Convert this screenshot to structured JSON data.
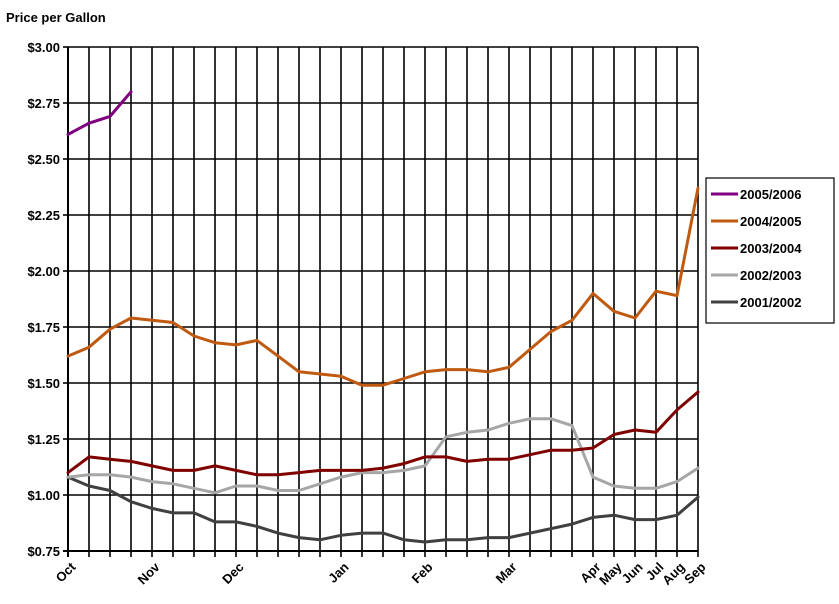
{
  "chart_data": {
    "type": "line",
    "ylabel": "Price per Gallon",
    "ylim": [
      0.75,
      3.0
    ],
    "yticks": [
      "$0.75",
      "$1.00",
      "$1.25",
      "$1.50",
      "$1.75",
      "$2.00",
      "$2.25",
      "$2.50",
      "$2.75",
      "$3.00"
    ],
    "ytick_values": [
      0.75,
      1.0,
      1.25,
      1.5,
      1.75,
      2.0,
      2.25,
      2.5,
      2.75,
      3.0
    ],
    "x_count": 31,
    "xtick_labels": [
      {
        "label": "Oct",
        "x": 0
      },
      {
        "label": "Nov",
        "x": 4
      },
      {
        "label": "Dec",
        "x": 8
      },
      {
        "label": "Jan",
        "x": 13
      },
      {
        "label": "Feb",
        "x": 17
      },
      {
        "label": "Mar",
        "x": 21
      },
      {
        "label": "Apr",
        "x": 25
      },
      {
        "label": "May",
        "x": 26
      },
      {
        "label": "Jun",
        "x": 27
      },
      {
        "label": "Jul",
        "x": 28
      },
      {
        "label": "Aug",
        "x": 29
      },
      {
        "label": "Sep",
        "x": 30
      }
    ],
    "grid": true,
    "legend_position": "right",
    "series": [
      {
        "name": "2005/2006",
        "color": "#800080",
        "values": [
          2.61,
          2.66,
          2.69,
          2.8
        ]
      },
      {
        "name": "2004/2005",
        "color": "#c05a10",
        "values": [
          1.62,
          1.66,
          1.74,
          1.79,
          1.78,
          1.77,
          1.71,
          1.68,
          1.67,
          1.69,
          1.62,
          1.55,
          1.54,
          1.53,
          1.49,
          1.49,
          1.52,
          1.55,
          1.56,
          1.56,
          1.55,
          1.57,
          1.65,
          1.73,
          1.78,
          1.9,
          1.82,
          1.79,
          1.91,
          1.89,
          2.37
        ]
      },
      {
        "name": "2003/2004",
        "color": "#800000",
        "values": [
          1.1,
          1.17,
          1.16,
          1.15,
          1.13,
          1.11,
          1.11,
          1.13,
          1.11,
          1.09,
          1.09,
          1.1,
          1.11,
          1.11,
          1.11,
          1.12,
          1.14,
          1.17,
          1.17,
          1.15,
          1.16,
          1.16,
          1.18,
          1.2,
          1.2,
          1.21,
          1.27,
          1.29,
          1.28,
          1.38,
          1.46
        ]
      },
      {
        "name": "2002/2003",
        "color": "#a6a6a6",
        "values": [
          1.08,
          1.09,
          1.09,
          1.08,
          1.06,
          1.05,
          1.03,
          1.01,
          1.04,
          1.04,
          1.02,
          1.02,
          1.05,
          1.08,
          1.1,
          1.1,
          1.11,
          1.13,
          1.26,
          1.28,
          1.29,
          1.32,
          1.34,
          1.34,
          1.31,
          1.08,
          1.04,
          1.03,
          1.03,
          1.06,
          1.12
        ]
      },
      {
        "name": "2001/2002",
        "color": "#404040",
        "values": [
          1.08,
          1.04,
          1.02,
          0.97,
          0.94,
          0.92,
          0.92,
          0.88,
          0.88,
          0.86,
          0.83,
          0.81,
          0.8,
          0.82,
          0.83,
          0.83,
          0.8,
          0.79,
          0.8,
          0.8,
          0.81,
          0.81,
          0.83,
          0.85,
          0.87,
          0.9,
          0.91,
          0.89,
          0.89,
          0.91,
          0.99
        ]
      }
    ]
  }
}
